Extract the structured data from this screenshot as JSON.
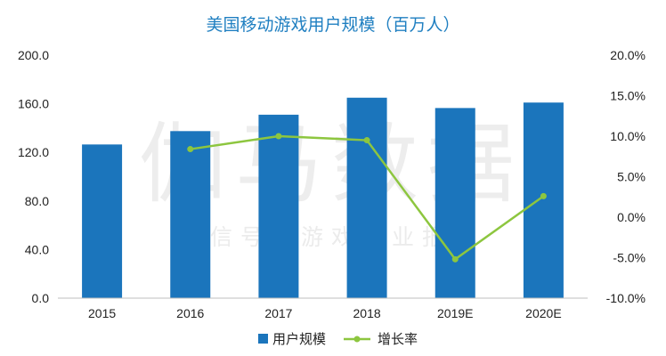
{
  "watermark": {
    "main": "伽马数据",
    "sub": "微信号：游戏产业报告"
  },
  "colors": {
    "bar": "#1b75bc",
    "line": "#8dc63f",
    "title": "#1f7fc1"
  },
  "chart_data": {
    "type": "bar",
    "title": "美国移动游戏用户规模（百万人）",
    "categories": [
      "2015",
      "2016",
      "2017",
      "2018",
      "2019E",
      "2020E"
    ],
    "series": [
      {
        "name": "用户规模",
        "type": "bar",
        "axis": "left",
        "values": [
          126.5,
          137.5,
          151.0,
          165.0,
          156.5,
          161.0
        ]
      },
      {
        "name": "增长率",
        "type": "line",
        "axis": "right",
        "values": [
          null,
          8.4,
          10.0,
          9.5,
          -5.2,
          2.6
        ]
      }
    ],
    "y_left": {
      "min": 0,
      "max": 200,
      "step": 40,
      "tick_labels": [
        "0.0",
        "40.0",
        "80.0",
        "120.0",
        "160.0",
        "200.0"
      ]
    },
    "y_right": {
      "min": -10,
      "max": 20,
      "step": 5,
      "tick_labels": [
        "-10.0%",
        "-5.0%",
        "0.0%",
        "5.0%",
        "10.0%",
        "15.0%",
        "20.0%"
      ]
    },
    "grid": false,
    "legend": "bottom"
  }
}
